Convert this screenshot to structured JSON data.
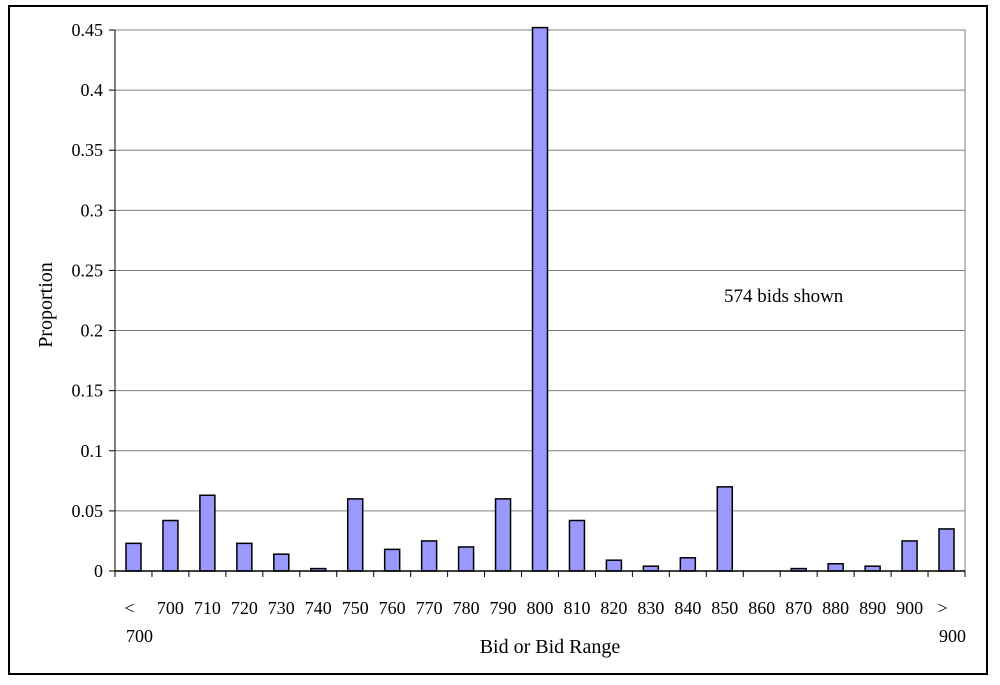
{
  "chart_data": {
    "type": "bar",
    "categories": [
      "< 700",
      "700",
      "710",
      "720",
      "730",
      "740",
      "750",
      "760",
      "770",
      "780",
      "790",
      "800",
      "810",
      "820",
      "830",
      "840",
      "850",
      "860",
      "870",
      "880",
      "890",
      "900",
      "> 900"
    ],
    "values": [
      0.023,
      0.042,
      0.063,
      0.023,
      0.014,
      0.002,
      0.06,
      0.018,
      0.025,
      0.02,
      0.06,
      0.452,
      0.042,
      0.009,
      0.004,
      0.011,
      0.07,
      0.0,
      0.002,
      0.006,
      0.004,
      0.025,
      0.035
    ],
    "title": "",
    "xlabel": "Bid or Bid Range",
    "ylabel": "Proportion",
    "ylim": [
      0,
      0.45
    ],
    "yticks": [
      "0",
      "0.05",
      "0.1",
      "0.15",
      "0.2",
      "0.25",
      "0.3",
      "0.35",
      "0.4",
      "0.45"
    ],
    "grid": true,
    "bar_color": "#9999ff",
    "annotation": "574 bids shown"
  }
}
